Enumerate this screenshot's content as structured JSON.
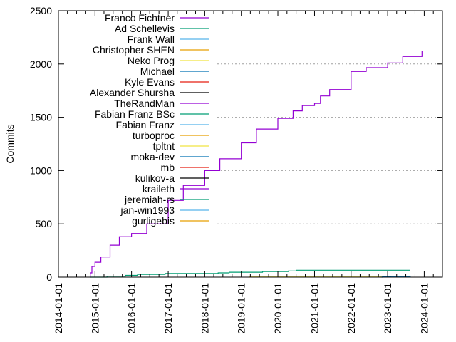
{
  "chart_data": {
    "type": "line",
    "title": "",
    "xlabel": "",
    "ylabel": "Commits",
    "xlim": [
      "2014-01-01",
      "2024-07-01"
    ],
    "ylim": [
      0,
      2500
    ],
    "x_ticks": [
      "2014-01-01",
      "2015-01-01",
      "2016-01-01",
      "2017-01-01",
      "2018-01-01",
      "2019-01-01",
      "2020-01-01",
      "2021-01-01",
      "2022-01-01",
      "2023-01-01",
      "2024-01-01"
    ],
    "y_ticks": [
      0,
      500,
      1000,
      1500,
      2000,
      2500
    ],
    "grid": {
      "y": true,
      "x": false,
      "style": "dotted",
      "values": [
        500,
        1000,
        1500,
        2000
      ]
    },
    "legend_placement": "top-left",
    "series": [
      {
        "name": "Franco Fichtner",
        "color": "#9400d3",
        "points": [
          [
            "2014-11-10",
            0
          ],
          [
            "2014-11-15",
            40
          ],
          [
            "2014-12-01",
            100
          ],
          [
            "2015-01-01",
            140
          ],
          [
            "2015-03-01",
            190
          ],
          [
            "2015-06-01",
            300
          ],
          [
            "2015-09-01",
            380
          ],
          [
            "2016-01-01",
            410
          ],
          [
            "2016-06-01",
            500
          ],
          [
            "2017-01-01",
            720
          ],
          [
            "2017-06-01",
            860
          ],
          [
            "2018-01-01",
            1000
          ],
          [
            "2018-06-01",
            1110
          ],
          [
            "2019-01-01",
            1260
          ],
          [
            "2019-06-01",
            1390
          ],
          [
            "2020-01-01",
            1490
          ],
          [
            "2020-06-01",
            1560
          ],
          [
            "2020-09-01",
            1610
          ],
          [
            "2021-01-01",
            1630
          ],
          [
            "2021-03-01",
            1700
          ],
          [
            "2021-06-01",
            1760
          ],
          [
            "2022-01-01",
            1930
          ],
          [
            "2022-06-01",
            1965
          ],
          [
            "2023-01-01",
            2010
          ],
          [
            "2023-06-01",
            2070
          ],
          [
            "2023-12-10",
            2120
          ]
        ]
      },
      {
        "name": "Ad Schellevis",
        "color": "#009e73",
        "points": [
          [
            "2014-11-10",
            0
          ],
          [
            "2015-05-01",
            9
          ],
          [
            "2015-11-01",
            17
          ],
          [
            "2016-03-01",
            26
          ],
          [
            "2016-12-01",
            34
          ],
          [
            "2018-05-15",
            40
          ],
          [
            "2018-09-01",
            46
          ],
          [
            "2019-08-01",
            52
          ],
          [
            "2020-04-15",
            58
          ],
          [
            "2020-07-01",
            65
          ],
          [
            "2023-08-15",
            65
          ]
        ]
      },
      {
        "name": "Frank Wall",
        "color": "#56b4e9",
        "points": [
          [
            "2022-10-15",
            0
          ],
          [
            "2022-10-20",
            3
          ],
          [
            "2023-08-15",
            5
          ]
        ]
      },
      {
        "name": "Christopher SHEN",
        "color": "#e69f00",
        "points": []
      },
      {
        "name": "Neko Prog",
        "color": "#f0e442",
        "points": [
          [
            "2019-03-15",
            0
          ],
          [
            "2019-03-20",
            2
          ],
          [
            "2022-11-15",
            2
          ]
        ]
      },
      {
        "name": "Michael",
        "color": "#0072b2",
        "points": [
          [
            "2022-11-01",
            0
          ],
          [
            "2022-11-10",
            4
          ],
          [
            "2023-02-01",
            8
          ],
          [
            "2023-08-15",
            10
          ]
        ]
      },
      {
        "name": "Kyle Evans",
        "color": "#e51e10",
        "points": []
      },
      {
        "name": "Alexander Shursha",
        "color": "#000000",
        "points": []
      },
      {
        "name": "TheRandMan",
        "color": "#9400d3",
        "points": []
      },
      {
        "name": "Fabian Franz BSc",
        "color": "#009e73",
        "points": []
      },
      {
        "name": "Fabian Franz",
        "color": "#56b4e9",
        "points": []
      },
      {
        "name": "turboproc",
        "color": "#e69f00",
        "points": []
      },
      {
        "name": "tpltnt",
        "color": "#f0e442",
        "points": []
      },
      {
        "name": "moka-dev",
        "color": "#0072b2",
        "points": []
      },
      {
        "name": "mb",
        "color": "#e51e10",
        "points": []
      },
      {
        "name": "kulikov-a",
        "color": "#000000",
        "points": []
      },
      {
        "name": "kraileth",
        "color": "#9400d3",
        "points": []
      },
      {
        "name": "jeremiah-rs",
        "color": "#009e73",
        "points": []
      },
      {
        "name": "jan-win1993",
        "color": "#56b4e9",
        "points": []
      },
      {
        "name": "gurligebis",
        "color": "#e69f00",
        "points": []
      }
    ]
  }
}
